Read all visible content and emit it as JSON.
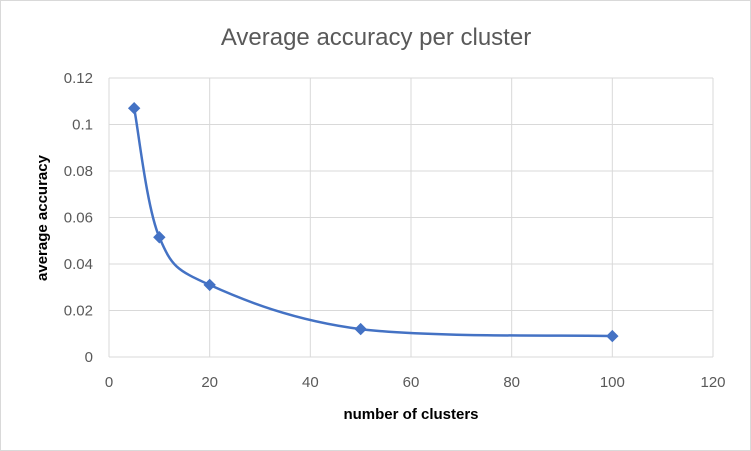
{
  "chart_data": {
    "type": "scatter",
    "title": "Average accuracy per cluster",
    "xlabel": "number of clusters",
    "ylabel": "average accuracy",
    "xlim": [
      0,
      120
    ],
    "ylim": [
      0,
      0.12
    ],
    "x_ticks": [
      0,
      20,
      40,
      60,
      80,
      100,
      120
    ],
    "y_ticks": [
      0,
      0.02,
      0.04,
      0.06,
      0.08,
      0.1,
      0.12
    ],
    "x_tick_labels": [
      "0",
      "20",
      "40",
      "60",
      "80",
      "100",
      "120"
    ],
    "y_tick_labels": [
      "0",
      "0.02",
      "0.04",
      "0.06",
      "0.08",
      "0.1",
      "0.12"
    ],
    "grid": true,
    "smooth_line": true,
    "marker": "diamond",
    "series_color": "#4472c4",
    "series": [
      {
        "x": [
          5,
          10,
          20,
          50,
          100
        ],
        "y": [
          0.107,
          0.0515,
          0.031,
          0.012,
          0.009
        ]
      }
    ]
  }
}
